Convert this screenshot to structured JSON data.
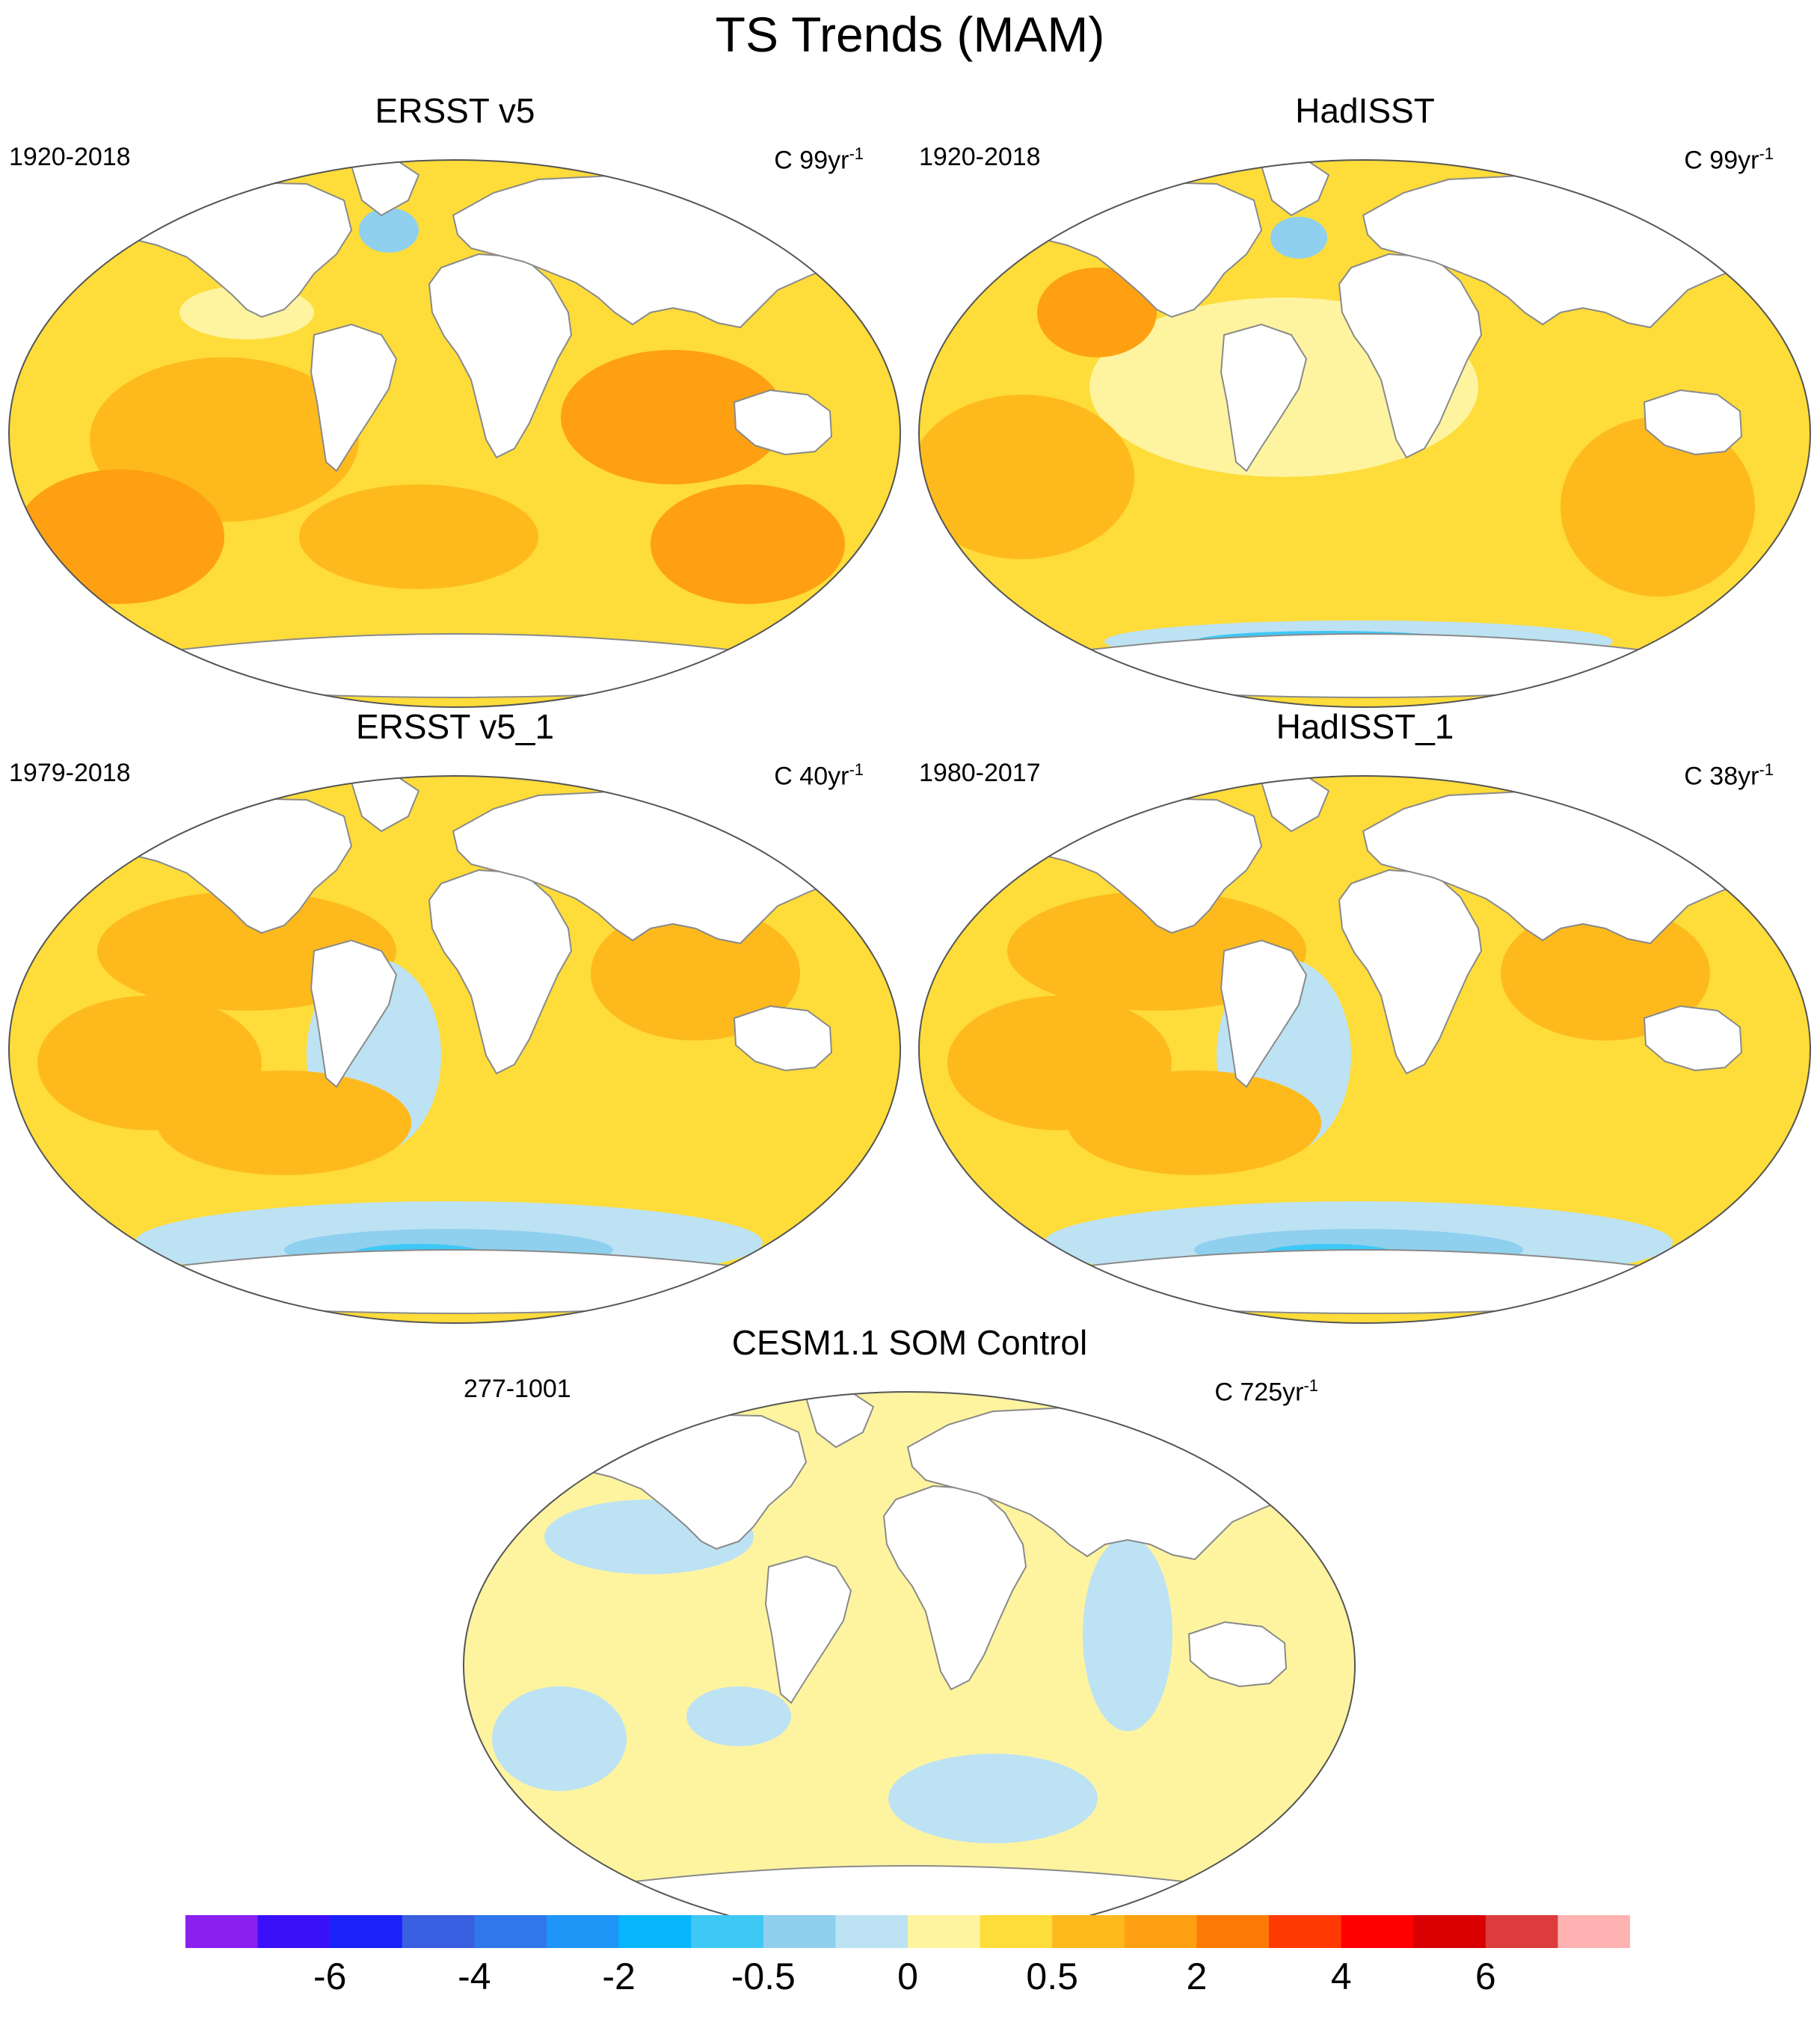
{
  "figure_title": "TS Trends (MAM)",
  "panels": [
    {
      "id": "ersst",
      "title": "ERSST v5",
      "period": "1920-2018",
      "units_prefix": "C 99yr",
      "units_exp": "-1",
      "pattern": "warm_all"
    },
    {
      "id": "hadisst",
      "title": "HadISST",
      "period": "1920-2018",
      "units_prefix": "C 99yr",
      "units_exp": "-1",
      "pattern": "warm_southcool"
    },
    {
      "id": "ersst1",
      "title": "ERSST v5_1",
      "period": "1979-2018",
      "units_prefix": "C 40yr",
      "units_exp": "-1",
      "pattern": "recent"
    },
    {
      "id": "hadisst1",
      "title": "HadISST_1",
      "period": "1980-2017",
      "units_prefix": "C 38yr",
      "units_exp": "-1",
      "pattern": "recent"
    },
    {
      "id": "cesm",
      "title": "CESM1.1 SOM Control",
      "period": "277-1001",
      "units_prefix": "C 725yr",
      "units_exp": "-1",
      "pattern": "neutral"
    }
  ],
  "colorbar": {
    "colors": [
      "#8a1ff0",
      "#3a10f8",
      "#1a22f8",
      "#3a5ee0",
      "#2e78ec",
      "#1e96f8",
      "#08b6fc",
      "#3ec8f6",
      "#8ed0ee",
      "#bde2f4",
      "#fef4a0",
      "#fedc3a",
      "#feba1c",
      "#fea012",
      "#fe7a06",
      "#fe3a02",
      "#fe0000",
      "#d80000",
      "#dc3c3c",
      "#feb2b2"
    ],
    "labels": [
      "-6",
      "-4",
      "-2",
      "-0.5",
      "0",
      "0.5",
      "2",
      "4",
      "6"
    ],
    "label_boundaries": [
      2,
      4,
      6,
      8,
      10,
      12,
      14,
      16,
      18
    ]
  }
}
